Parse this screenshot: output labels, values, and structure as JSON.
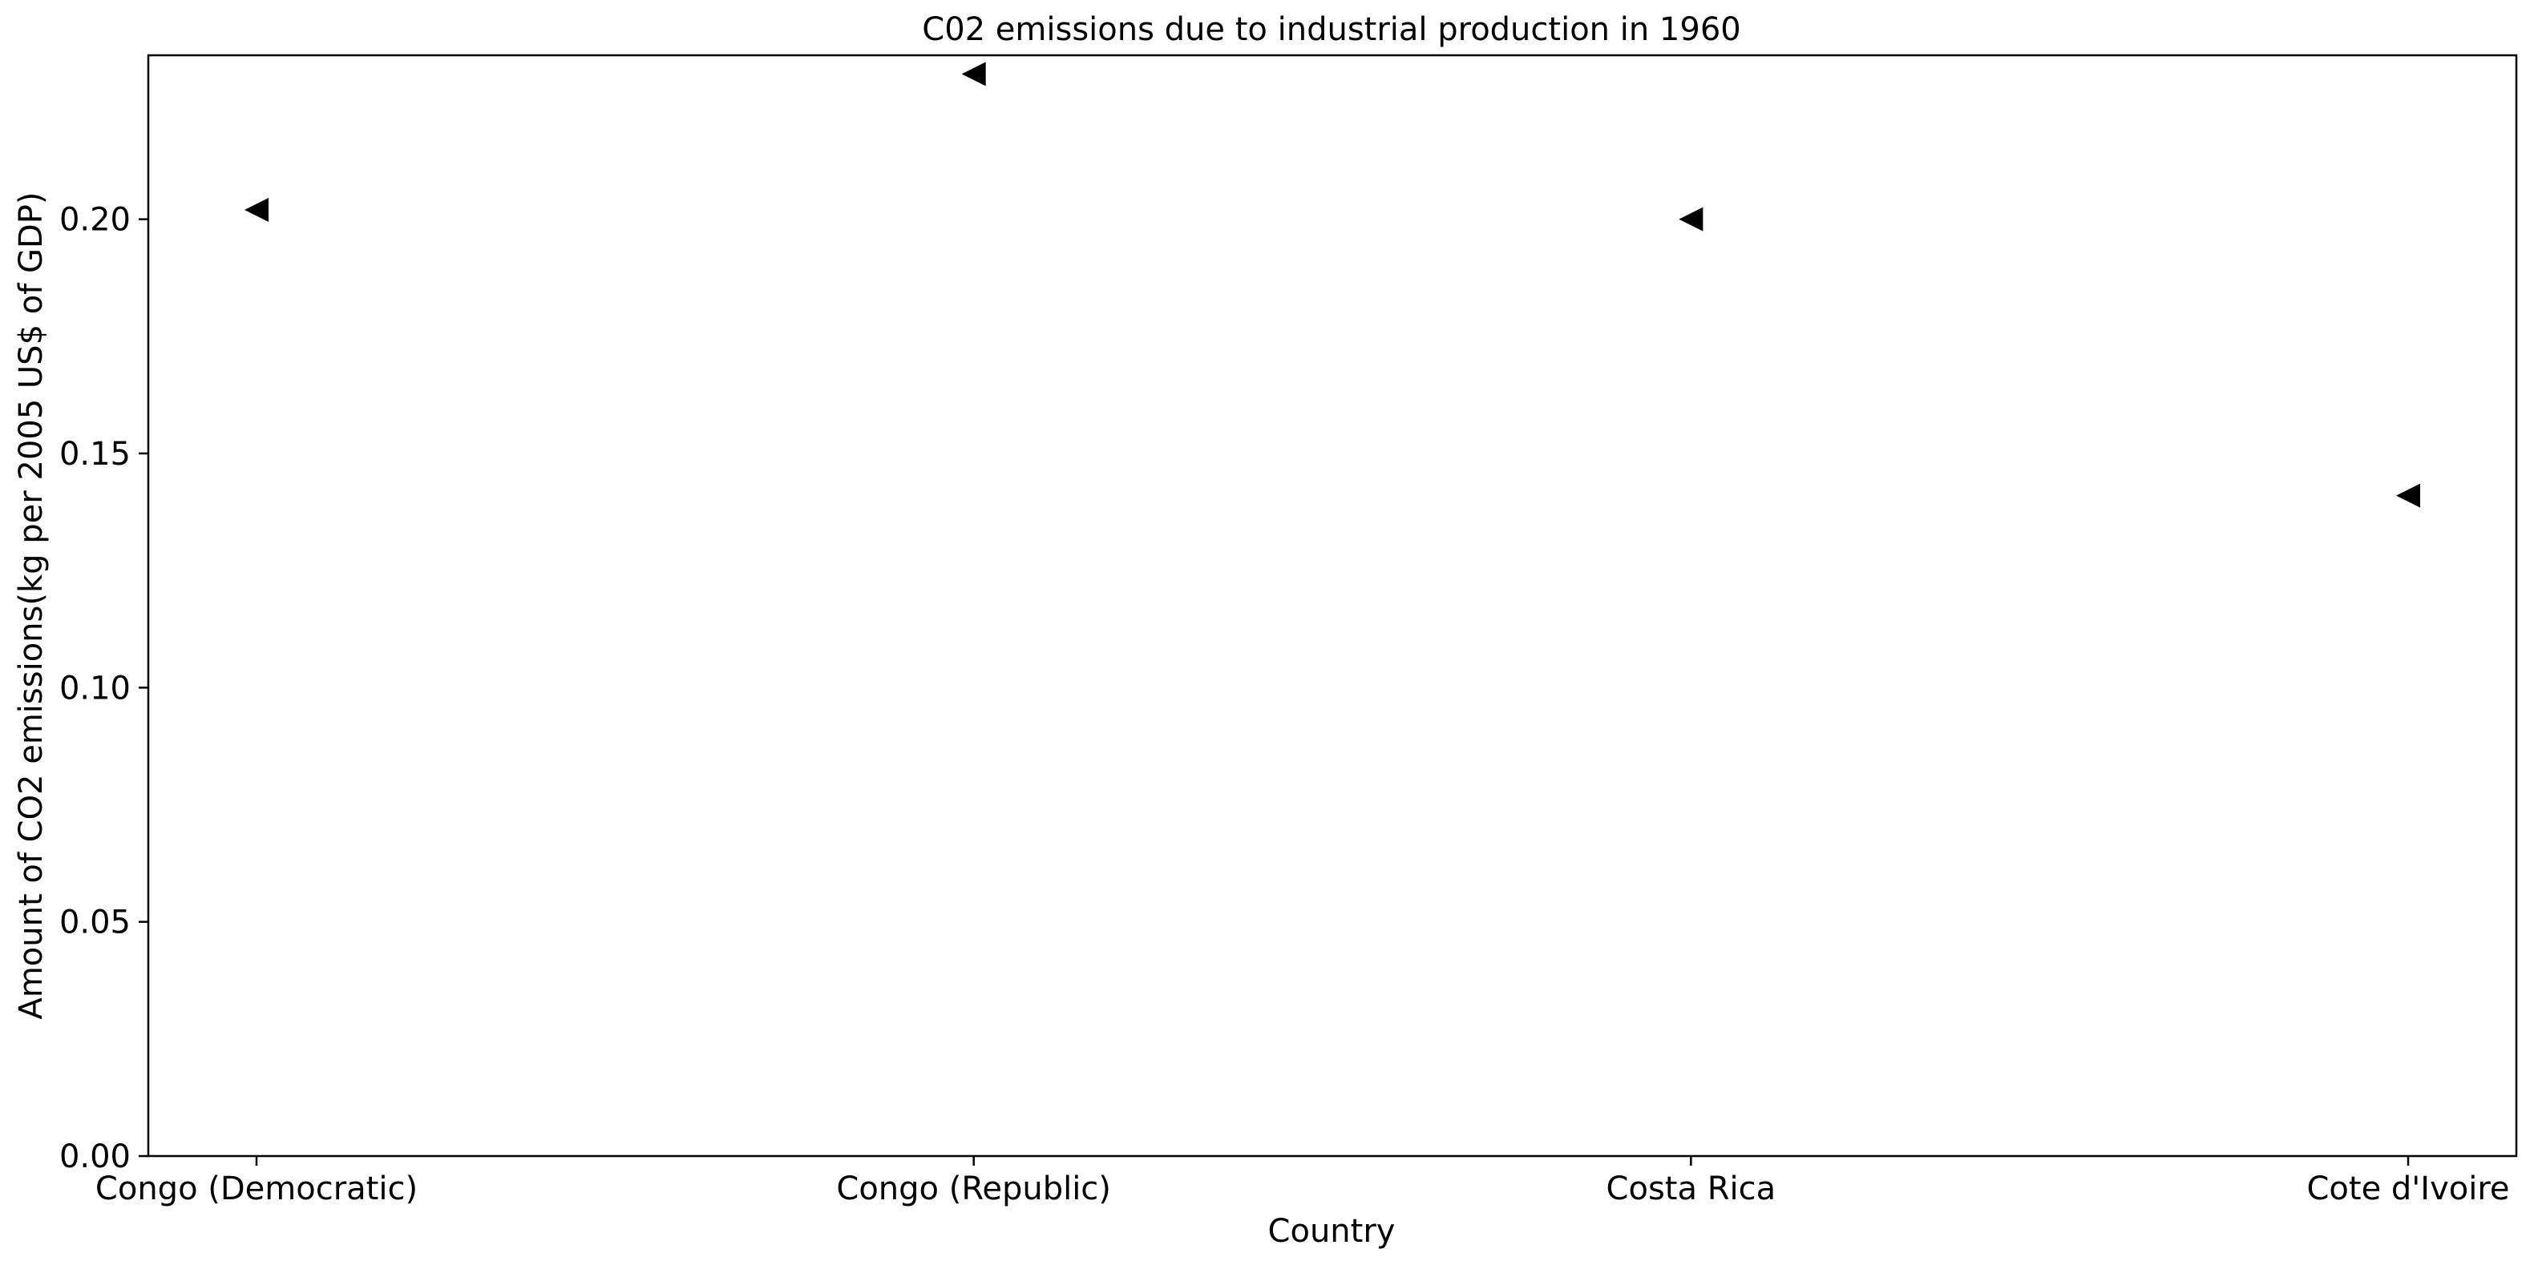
{
  "chart_data": {
    "type": "scatter",
    "title": "C02 emissions due to industrial production in 1960",
    "xlabel": "Country",
    "ylabel": "Amount of CO2 emissions(kg per 2005 US$ of GDP)",
    "categories": [
      "Congo (Democratic)",
      "Congo (Republic)",
      "Costa Rica",
      "Cote d'Ivoire"
    ],
    "values": [
      0.202,
      0.231,
      0.2,
      0.141
    ],
    "ylim": [
      0,
      0.235
    ],
    "yticks": [
      0.0,
      0.05,
      0.1,
      0.15,
      0.2
    ],
    "ytick_labels": [
      "0.00",
      "0.05",
      "0.10",
      "0.15",
      "0.20"
    ],
    "marker": "triangle-left",
    "marker_color": "#000000",
    "grid": false,
    "legend": false
  }
}
